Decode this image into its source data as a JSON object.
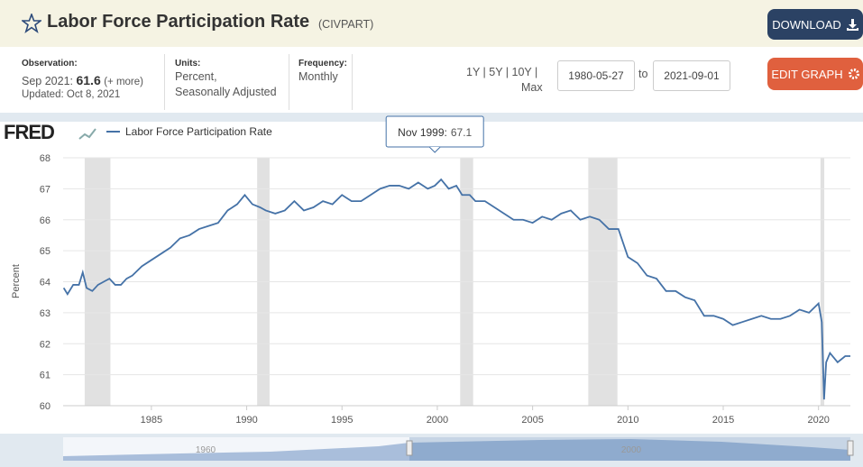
{
  "header": {
    "title": "Labor Force Participation Rate",
    "series_id": "(CIVPART)",
    "download_button": "DOWNLOAD"
  },
  "info": {
    "observation_label": "Observation:",
    "observation_date": "Sep 2021:",
    "observation_value": 61.6,
    "more_link": "(+ more)",
    "updated": "Updated: Oct 8, 2021",
    "units_label": "Units:",
    "units_line1": "Percent,",
    "units_line2": "Seasonally Adjusted",
    "frequency_label": "Frequency:",
    "frequency": "Monthly",
    "range_links": "1Y | 5Y | 10Y |",
    "range_max": "Max",
    "start_date": "1980-05-27",
    "to_label": "to",
    "end_date": "2021-09-01",
    "edit_button": "EDIT GRAPH"
  },
  "chart_data": {
    "type": "line",
    "logo": "FRED",
    "ylabel": "Percent",
    "tooltip": {
      "label": "Nov 1999:",
      "value": 67.1,
      "x": 1999.87
    },
    "x": [
      1980.4,
      1980.6,
      1980.9,
      1981.2,
      1981.4,
      1981.6,
      1981.9,
      1982.2,
      1982.5,
      1982.8,
      1983.1,
      1983.4,
      1983.7,
      1984.0,
      1984.5,
      1985.0,
      1985.5,
      1986.0,
      1986.5,
      1987.0,
      1987.5,
      1988.0,
      1988.5,
      1989.0,
      1989.5,
      1989.9,
      1990.3,
      1990.7,
      1991.0,
      1991.5,
      1992.0,
      1992.5,
      1993.0,
      1993.5,
      1994.0,
      1994.5,
      1995.0,
      1995.5,
      1996.0,
      1996.5,
      1997.0,
      1997.5,
      1998.0,
      1998.5,
      1999.0,
      1999.5,
      1999.87,
      2000.2,
      2000.6,
      2001.0,
      2001.3,
      2001.7,
      2002.0,
      2002.5,
      2003.0,
      2003.5,
      2004.0,
      2004.5,
      2005.0,
      2005.5,
      2006.0,
      2006.5,
      2007.0,
      2007.5,
      2008.0,
      2008.5,
      2009.0,
      2009.5,
      2010.0,
      2010.5,
      2011.0,
      2011.5,
      2012.0,
      2012.5,
      2013.0,
      2013.5,
      2014.0,
      2014.5,
      2015.0,
      2015.5,
      2016.0,
      2016.5,
      2017.0,
      2017.5,
      2018.0,
      2018.5,
      2019.0,
      2019.5,
      2020.0,
      2020.17,
      2020.29,
      2020.4,
      2020.6,
      2021.0,
      2021.4,
      2021.67
    ],
    "series": [
      {
        "name": "Labor Force Participation Rate",
        "color": "#4572a7",
        "values": [
          63.8,
          63.6,
          63.9,
          63.9,
          64.3,
          63.8,
          63.7,
          63.9,
          64.0,
          64.1,
          63.9,
          63.9,
          64.1,
          64.2,
          64.5,
          64.7,
          64.9,
          65.1,
          65.4,
          65.5,
          65.7,
          65.8,
          65.9,
          66.3,
          66.5,
          66.8,
          66.5,
          66.4,
          66.3,
          66.2,
          66.3,
          66.6,
          66.3,
          66.4,
          66.6,
          66.5,
          66.8,
          66.6,
          66.6,
          66.8,
          67.0,
          67.1,
          67.1,
          67.0,
          67.2,
          67.0,
          67.1,
          67.3,
          67.0,
          67.1,
          66.8,
          66.8,
          66.6,
          66.6,
          66.4,
          66.2,
          66.0,
          66.0,
          65.9,
          66.1,
          66.0,
          66.2,
          66.3,
          66.0,
          66.1,
          66.0,
          65.7,
          65.7,
          64.8,
          64.6,
          64.2,
          64.1,
          63.7,
          63.7,
          63.5,
          63.4,
          62.9,
          62.9,
          62.8,
          62.6,
          62.7,
          62.8,
          62.9,
          62.8,
          62.8,
          62.9,
          63.1,
          63.0,
          63.3,
          62.7,
          60.2,
          61.4,
          61.7,
          61.4,
          61.6,
          61.6
        ]
      }
    ],
    "recessions": [
      [
        1981.5,
        1982.85
      ],
      [
        1990.55,
        1991.2
      ],
      [
        2001.2,
        2001.88
      ],
      [
        2007.92,
        2009.45
      ],
      [
        2020.1,
        2020.3
      ]
    ],
    "recession_color": "#e1e1e1",
    "xlim": [
      1980.37,
      2021.67
    ],
    "xticks": [
      1985,
      1990,
      1995,
      2000,
      2005,
      2010,
      2015,
      2020
    ],
    "ylim": [
      60,
      68
    ],
    "yticks": [
      60,
      61,
      62,
      63,
      64,
      65,
      66,
      67,
      68
    ],
    "grid": true,
    "navigator_labels": [
      "1960",
      "2000"
    ]
  }
}
